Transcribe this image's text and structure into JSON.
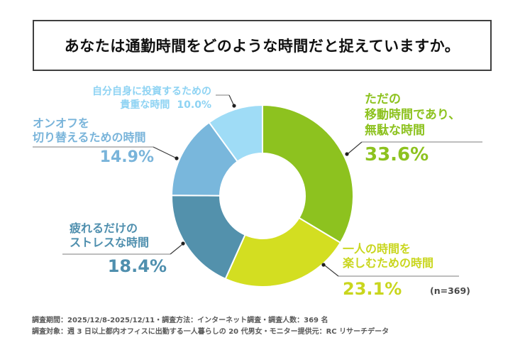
{
  "title": "あなたは通勤時間をどのような時間だと捉えていますか。",
  "note": "(n=369)",
  "chart_data": {
    "type": "pie",
    "subtype": "donut",
    "start_angle_deg": 0,
    "direction": "clockwise",
    "categories": [
      "ただの移動時間であり、無駄な時間",
      "一人の時間を楽しむための時間",
      "疲れるだけのストレスな時間",
      "オンオフを切り替えるための時間",
      "自分自身に投資するための貴重な時間"
    ],
    "values": [
      33.6,
      23.1,
      18.4,
      14.9,
      10.0
    ],
    "colors": [
      "#8dc21f",
      "#d3de21",
      "#5391ac",
      "#79b7dc",
      "#9fdcf6"
    ],
    "sample_size": 369,
    "legend_position": "around-chart"
  },
  "labels": {
    "wasted": {
      "line1": "ただの",
      "line2": "移動時間であり、",
      "line3": "無駄な時間",
      "pct": "33.6%"
    },
    "alone": {
      "line1": "一人の時間を",
      "line2": "楽しむための時間",
      "pct": "23.1%"
    },
    "stress": {
      "line1": "疲れるだけの",
      "line2": "ストレスな時間",
      "pct": "18.4%"
    },
    "switch": {
      "line1": "オンオフを",
      "line2": "切り替えるための時間",
      "pct": "14.9%"
    },
    "invest": {
      "line1": "自分自身に投資するための",
      "line2": "貴重な時間",
      "pct": "10.0%"
    }
  },
  "footer": {
    "line1": "調査期間：2025/12/8-2025/12/11・調査方法：インターネット調査・調査人数：369 名",
    "line2": "調査対象：週 3 日以上都内オフィスに出勤する一人暮らしの 20 代男女・モニター提供元：RC リサーチデータ"
  }
}
